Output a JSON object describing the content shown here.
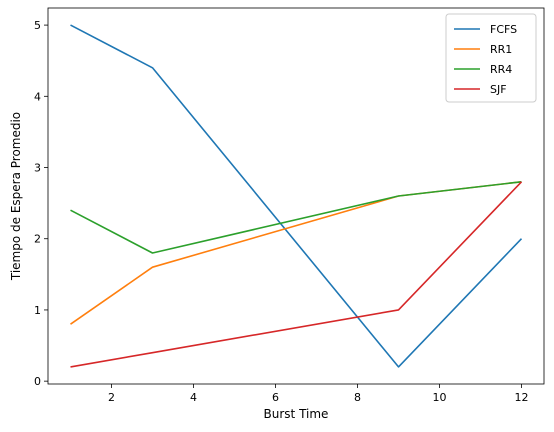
{
  "chart_data": {
    "type": "line",
    "title": "",
    "xlabel": "Burst Time",
    "ylabel": "Tiempo de Espera Promedio",
    "xlim": [
      0.45,
      12.55
    ],
    "ylim": [
      -0.04,
      5.24
    ],
    "xticks": [
      2,
      4,
      6,
      8,
      10,
      12
    ],
    "yticks": [
      0,
      1,
      2,
      3,
      4,
      5
    ],
    "grid": false,
    "legend_position": "top-right",
    "x": [
      1,
      3,
      9,
      12
    ],
    "series": [
      {
        "name": "FCFS",
        "color": "#1f77b4",
        "values": [
          5.0,
          4.4,
          0.2,
          2.0
        ]
      },
      {
        "name": "RR1",
        "color": "#ff7f0e",
        "values": [
          0.8,
          1.6,
          2.6,
          2.8
        ]
      },
      {
        "name": "RR4",
        "color": "#2ca02c",
        "values": [
          2.4,
          1.8,
          2.6,
          2.8
        ]
      },
      {
        "name": "SJF",
        "color": "#d62728",
        "values": [
          0.2,
          0.4,
          1.0,
          2.8
        ]
      }
    ]
  }
}
